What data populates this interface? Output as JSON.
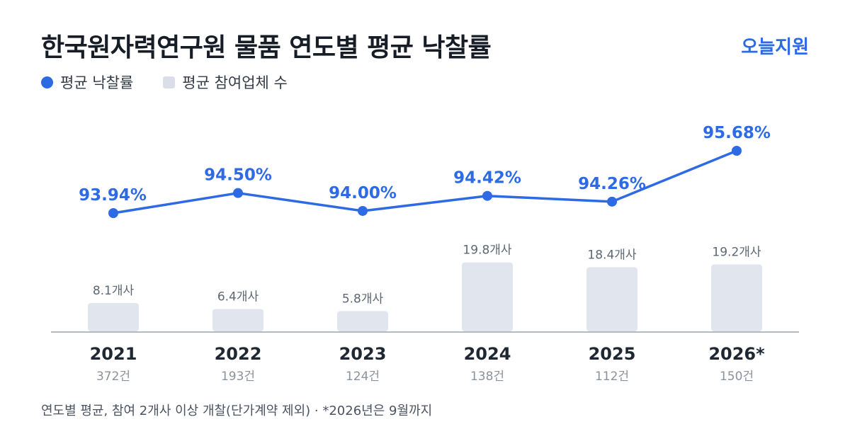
{
  "header": {
    "title": "한국원자력연구원 물품 연도별 평균 낙찰률",
    "brand": "오늘지원"
  },
  "legend": {
    "line_label": "평균 낙찰률",
    "bar_label": "평균 참여업체 수"
  },
  "footnote": "연도별 평균, 참여 2개사 이상 개찰(단가계약 제외) · *2026년은 9월까지",
  "colors": {
    "line": "#2d6ae3",
    "bar": "#e1e6ee",
    "axis": "#9aa3b0",
    "text_dark": "#1f2733",
    "text_muted": "#8a929e"
  },
  "chart_data": {
    "type": "bar+line",
    "categories": [
      "2021",
      "2022",
      "2023",
      "2024",
      "2025",
      "2026*"
    ],
    "sublabels": [
      "372건",
      "193건",
      "124건",
      "138건",
      "112건",
      "150건"
    ],
    "series": [
      {
        "name": "평균 낙찰률",
        "type": "line",
        "values": [
          93.94,
          94.5,
          94.0,
          94.42,
          94.26,
          95.68
        ],
        "labels": [
          "93.94%",
          "94.50%",
          "94.00%",
          "94.42%",
          "94.26%",
          "95.68%"
        ]
      },
      {
        "name": "평균 참여업체 수",
        "type": "bar",
        "values": [
          8.1,
          6.4,
          5.8,
          19.8,
          18.4,
          19.2
        ],
        "labels": [
          "8.1개사",
          "6.4개사",
          "5.8개사",
          "19.8개사",
          "18.4개사",
          "19.2개사"
        ]
      }
    ]
  }
}
